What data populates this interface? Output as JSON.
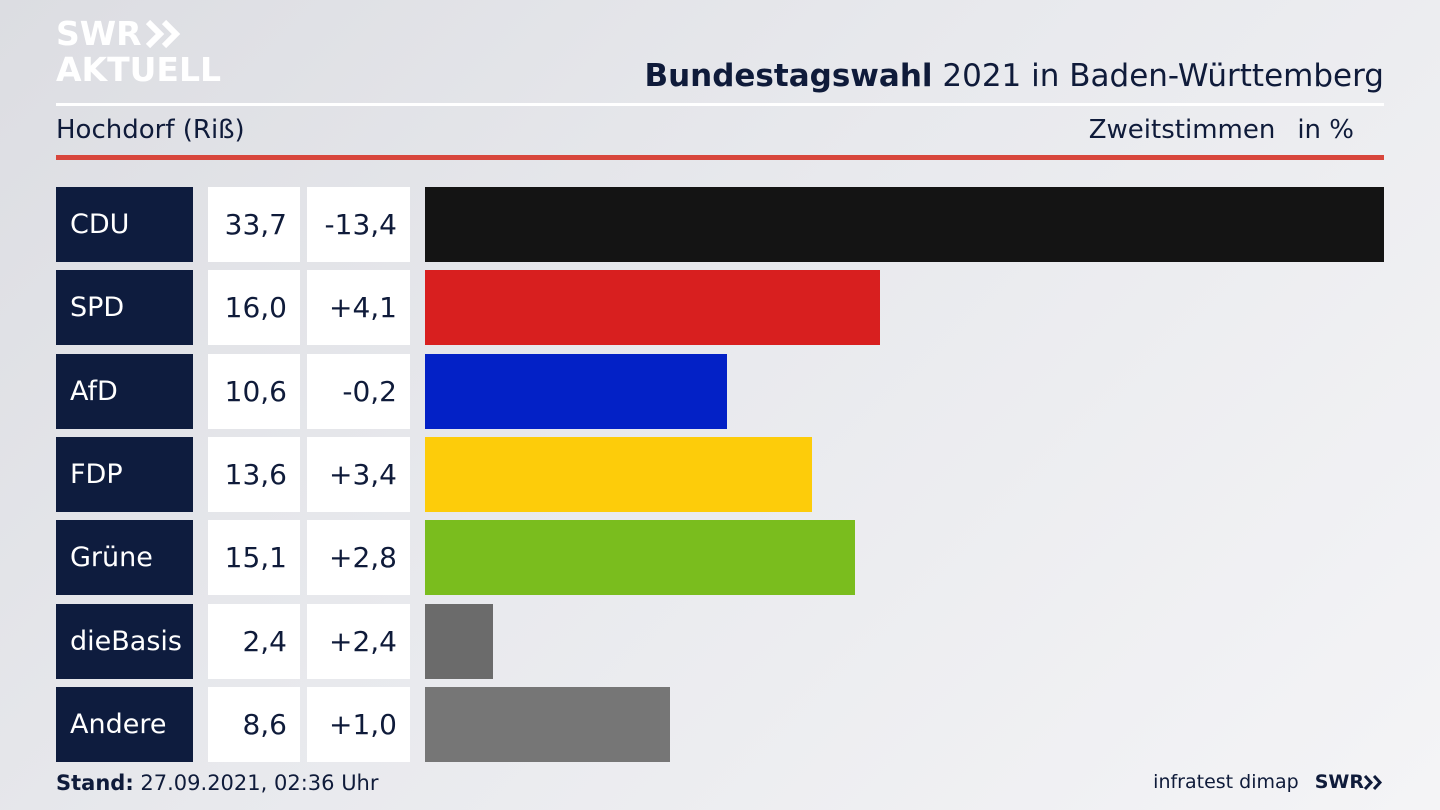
{
  "brand": {
    "line1": "SWR",
    "line2": "AKTUELL",
    "footer_logo": "SWR"
  },
  "header": {
    "title_bold": "Bundestagswahl",
    "title_rest": "2021 in Baden-Württemberg",
    "region": "Hochdorf (Riß)",
    "measure": "Zweitstimmen",
    "unit": "in %"
  },
  "footer": {
    "stand_label": "Stand:",
    "stand_value": "27.09.2021, 02:36 Uhr",
    "source": "infratest dimap"
  },
  "chart_data": {
    "type": "bar",
    "orientation": "horizontal",
    "categories": [
      "CDU",
      "SPD",
      "AfD",
      "FDP",
      "Grüne",
      "dieBasis",
      "Andere"
    ],
    "series": [
      {
        "values": [
          33.7,
          16.0,
          10.6,
          13.6,
          15.1,
          2.4,
          8.6
        ]
      }
    ],
    "value_labels": [
      "33,7",
      "16,0",
      "10,6",
      "13,6",
      "15,1",
      "2,4",
      "8,6"
    ],
    "diff_labels": [
      "-13,4",
      "+4,1",
      "-0,2",
      "+3,4",
      "+2,8",
      "+2,4",
      "+1,0"
    ],
    "colors": [
      "#141414",
      "#d81f1f",
      "#0321c6",
      "#fdcc0a",
      "#7abd1e",
      "#6b6b6b",
      "#767676"
    ],
    "xlim": [
      0,
      33.7
    ],
    "grid": false,
    "legend": "none"
  }
}
